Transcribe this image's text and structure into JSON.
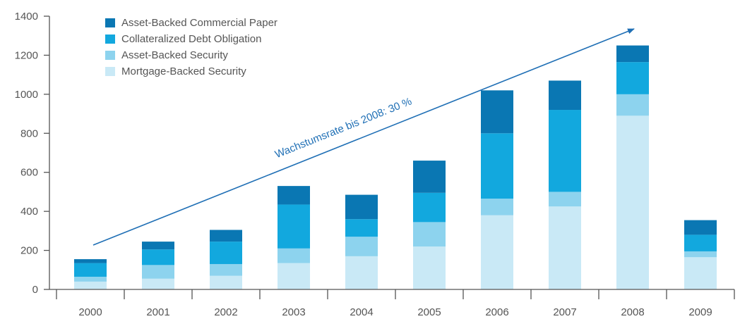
{
  "chart_data": {
    "type": "bar",
    "stacked": true,
    "title": "",
    "xlabel": "",
    "ylabel": "",
    "ylim": [
      0,
      1400
    ],
    "yticks": [
      0,
      200,
      400,
      600,
      800,
      1000,
      1200,
      1400
    ],
    "categories": [
      "2000",
      "2001",
      "2002",
      "2003",
      "2004",
      "2005",
      "2006",
      "2007",
      "2008",
      "2009"
    ],
    "series": [
      {
        "name": "Mortgage-Backed Security",
        "color": "#c9e9f6",
        "values": [
          40,
          55,
          70,
          135,
          170,
          220,
          380,
          425,
          890,
          165
        ]
      },
      {
        "name": "Asset-Backed Security",
        "color": "#8dd3ee",
        "values": [
          25,
          70,
          60,
          75,
          100,
          125,
          85,
          75,
          110,
          30
        ]
      },
      {
        "name": "Collateralized Debt Obligation",
        "color": "#12a8de",
        "values": [
          70,
          80,
          115,
          225,
          90,
          150,
          335,
          420,
          165,
          85
        ]
      },
      {
        "name": "Asset-Backed Commercial Paper",
        "color": "#0a77b3",
        "values": [
          20,
          40,
          60,
          95,
          125,
          165,
          220,
          150,
          85,
          75
        ]
      }
    ],
    "legend": {
      "position": "top-left",
      "order": [
        "Asset-Backed Commercial Paper",
        "Collateralized Debt Obligation",
        "Asset-Backed Security",
        "Mortgage-Backed Security"
      ]
    },
    "grid": false,
    "annotations": [
      {
        "text": "Wachstumsrate bis 2008: 30 %",
        "type": "arrow",
        "from": {
          "x": "2000",
          "y": 230
        },
        "to": {
          "x": "2008",
          "y": 1330
        },
        "color": "#1f6fb5"
      }
    ]
  }
}
